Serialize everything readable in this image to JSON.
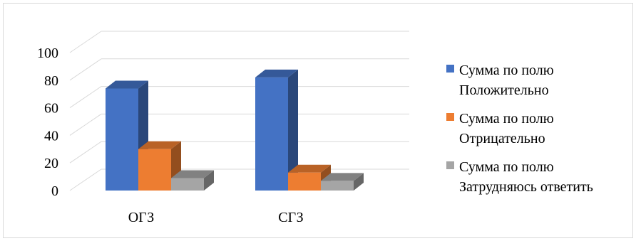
{
  "chart_data": {
    "type": "bar",
    "style": "3d-clustered-column",
    "categories": [
      "ОГЗ",
      "СГЗ"
    ],
    "series": [
      {
        "name": "Сумма по полю Положительно",
        "values": [
          74,
          82
        ],
        "color": "#4472C4"
      },
      {
        "name": "Сумма по полю Отрицательно",
        "values": [
          30,
          13
        ],
        "color": "#ED7D31"
      },
      {
        "name": "Сумма по полю Затрудняюсь ответить",
        "values": [
          9,
          7
        ],
        "color": "#A5A5A5"
      }
    ],
    "yticks": [
      "0",
      "20",
      "40",
      "60",
      "80",
      "100"
    ],
    "ylim": [
      0,
      100
    ],
    "grid": true,
    "legend_position": "right"
  },
  "legend": {
    "items": [
      {
        "line1": "Сумма по полю",
        "line2": "Положительно"
      },
      {
        "line1": "Сумма по полю",
        "line2": "Отрицательно"
      },
      {
        "line1": "Сумма по полю",
        "line2": "Затрудняюсь ответить"
      }
    ]
  }
}
